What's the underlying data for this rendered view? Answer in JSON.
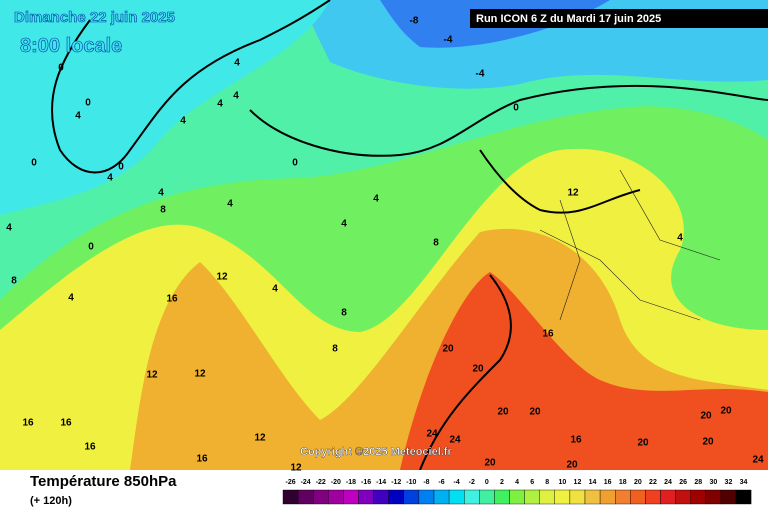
{
  "header": {
    "date": "Dimanche 22 juin 2025",
    "time": "8:00 locale",
    "run": "Run ICON 6 Z du Mardi 17 juin 2025"
  },
  "map": {
    "labels": [
      "-8",
      "-4",
      "-4",
      "0",
      "0",
      "4",
      "0",
      "4",
      "4",
      "4",
      "4",
      "0",
      "0",
      "4",
      "0",
      "4",
      "8",
      "4",
      "4",
      "4",
      "8",
      "0",
      "12",
      "4",
      "12",
      "16",
      "8",
      "4",
      "8",
      "16",
      "20",
      "20",
      "8",
      "12",
      "12",
      "4",
      "16",
      "16",
      "16",
      "16",
      "20",
      "20",
      "24",
      "24",
      "20",
      "20",
      "16",
      "20",
      "20",
      "24",
      "20",
      "20",
      "12",
      "12",
      "4"
    ],
    "copyright": "Copyright ©2025 Meteociel.fr"
  },
  "footer": {
    "title": "Température 850hPa",
    "subtitle": "(+ 120h)"
  },
  "legend": {
    "stops": [
      -26,
      -24,
      -22,
      -20,
      -18,
      -16,
      -14,
      -12,
      -10,
      -8,
      -6,
      -4,
      -2,
      0,
      2,
      4,
      6,
      8,
      10,
      12,
      14,
      16,
      18,
      20,
      22,
      24,
      26,
      28,
      30,
      32,
      34
    ],
    "colors": [
      "#300030",
      "#600060",
      "#800080",
      "#a000a0",
      "#c000c0",
      "#8000c0",
      "#4000c0",
      "#0000c0",
      "#0040e0",
      "#0080f0",
      "#00b0f0",
      "#00e0f0",
      "#40f0e0",
      "#40f0a0",
      "#40f060",
      "#80f040",
      "#b0f040",
      "#e0f040",
      "#f0f040",
      "#f0e040",
      "#f0c040",
      "#f0a030",
      "#f08030",
      "#f06020",
      "#f04020",
      "#e02020",
      "#c01010",
      "#a00000",
      "#800000",
      "#500000",
      "#000000"
    ]
  }
}
